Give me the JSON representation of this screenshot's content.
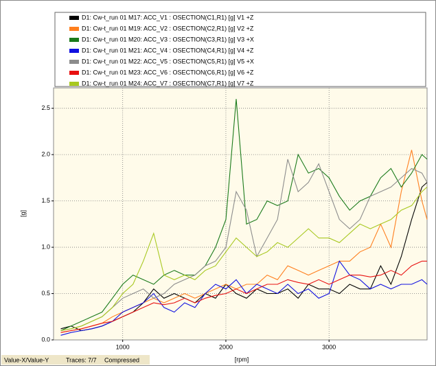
{
  "chart_data": {
    "type": "line",
    "xlabel": "[rpm]",
    "ylabel": "[g]",
    "status": [
      "Value-X/Value-Y",
      "Traces: 7/7",
      "Compressed"
    ],
    "xlim": [
      330,
      3950
    ],
    "ylim": [
      0,
      2.72
    ],
    "xticks": [
      1000,
      2000,
      3000
    ],
    "yticks": [
      {
        "value": 0,
        "label": "0.0"
      },
      0.5,
      {
        "value": 1,
        "label": "1.0"
      },
      1.5,
      {
        "value": 2,
        "label": "2.0"
      },
      2.5
    ],
    "grid": true,
    "legend": "top",
    "x": [
      400,
      500,
      600,
      700,
      800,
      900,
      1000,
      1100,
      1200,
      1300,
      1400,
      1500,
      1600,
      1700,
      1800,
      1900,
      2000,
      2100,
      2200,
      2300,
      2400,
      2500,
      2600,
      2700,
      2800,
      2900,
      3000,
      3100,
      3200,
      3300,
      3400,
      3500,
      3600,
      3700,
      3800,
      3900,
      3950
    ],
    "series": [
      {
        "name": "D1: Cw-t_run 01  M17: ACC_V1 : OSECTION(C1,R1) [g]  V1  +Z",
        "color": "#000000",
        "values": [
          0.12,
          0.15,
          0.1,
          0.12,
          0.15,
          0.2,
          0.25,
          0.3,
          0.4,
          0.55,
          0.45,
          0.5,
          0.45,
          0.4,
          0.5,
          0.45,
          0.6,
          0.5,
          0.45,
          0.55,
          0.5,
          0.5,
          0.55,
          0.45,
          0.6,
          0.55,
          0.55,
          0.5,
          0.6,
          0.55,
          0.55,
          0.8,
          0.6,
          0.9,
          1.3,
          1.65,
          1.7
        ]
      },
      {
        "name": "D1: Cw-t_run 01  M19: ACC_V2 : OSECTION(C2,R1) [g]  V2  +Z",
        "color": "#ff7f1e",
        "values": [
          0.08,
          0.1,
          0.12,
          0.15,
          0.18,
          0.25,
          0.3,
          0.35,
          0.4,
          0.45,
          0.4,
          0.45,
          0.5,
          0.45,
          0.5,
          0.55,
          0.6,
          0.55,
          0.6,
          0.6,
          0.7,
          0.65,
          0.8,
          0.75,
          0.7,
          0.75,
          0.8,
          0.85,
          0.85,
          0.95,
          1.0,
          1.25,
          1.0,
          1.6,
          2.05,
          1.5,
          1.3
        ]
      },
      {
        "name": "D1: Cw-t_run 01  M20: ACC_V3 : OSECTION(C3,R1) [g]  V3  +X",
        "color": "#1a7a1a",
        "values": [
          0.1,
          0.15,
          0.2,
          0.25,
          0.3,
          0.45,
          0.6,
          0.7,
          0.65,
          0.6,
          0.7,
          0.75,
          0.7,
          0.7,
          0.8,
          1.0,
          1.3,
          2.6,
          1.25,
          1.3,
          1.5,
          1.45,
          1.5,
          2.0,
          1.8,
          1.85,
          1.75,
          1.55,
          1.4,
          1.5,
          1.55,
          1.75,
          1.85,
          1.65,
          1.8,
          2.0,
          1.95
        ]
      },
      {
        "name": "D1: Cw-t_run 01  M21: ACC_V4 : OSECTION(C4,R1) [g]  V4  +Z",
        "color": "#1010e0",
        "values": [
          0.05,
          0.08,
          0.1,
          0.12,
          0.15,
          0.2,
          0.3,
          0.35,
          0.4,
          0.5,
          0.35,
          0.3,
          0.4,
          0.35,
          0.5,
          0.6,
          0.55,
          0.65,
          0.5,
          0.6,
          0.55,
          0.5,
          0.6,
          0.5,
          0.55,
          0.45,
          0.5,
          0.85,
          0.7,
          0.65,
          0.55,
          0.6,
          0.55,
          0.6,
          0.6,
          0.65,
          0.6
        ]
      },
      {
        "name": "D1: Cw-t_run 01  M22: ACC_V5 : OSECTION(C5,R1) [g]  V5  +X",
        "color": "#8c8c8c",
        "values": [
          0.1,
          0.12,
          0.15,
          0.2,
          0.25,
          0.35,
          0.45,
          0.5,
          0.55,
          0.45,
          0.5,
          0.6,
          0.65,
          0.7,
          0.8,
          0.85,
          1.0,
          1.6,
          1.4,
          0.9,
          1.1,
          1.3,
          1.95,
          1.6,
          1.7,
          1.9,
          1.6,
          1.3,
          1.2,
          1.3,
          1.55,
          1.6,
          1.65,
          1.75,
          1.85,
          1.8,
          1.7
        ]
      },
      {
        "name": "D1: Cw-t_run 01  M23: ACC_V6 : OSECTION(C6,R1) [g]  V6  +Z",
        "color": "#e81010",
        "values": [
          0.08,
          0.1,
          0.12,
          0.15,
          0.18,
          0.2,
          0.25,
          0.3,
          0.35,
          0.4,
          0.38,
          0.4,
          0.45,
          0.4,
          0.45,
          0.48,
          0.5,
          0.55,
          0.5,
          0.55,
          0.6,
          0.6,
          0.65,
          0.62,
          0.6,
          0.65,
          0.6,
          0.65,
          0.7,
          0.7,
          0.68,
          0.7,
          0.75,
          0.7,
          0.8,
          0.85,
          0.85
        ]
      },
      {
        "name": "D1: Cw-t_run 01  M24: ACC_V7 : OSECTION(C7,R1) [g]  V7  +Z",
        "color": "#a8c820",
        "values": [
          0.1,
          0.12,
          0.15,
          0.2,
          0.25,
          0.35,
          0.5,
          0.6,
          0.85,
          1.15,
          0.7,
          0.65,
          0.7,
          0.65,
          0.75,
          0.8,
          0.95,
          1.1,
          1.0,
          0.9,
          0.95,
          1.05,
          1.0,
          1.1,
          1.2,
          1.1,
          1.1,
          1.05,
          1.15,
          1.25,
          1.2,
          1.25,
          1.3,
          1.4,
          1.45,
          1.6,
          1.65
        ]
      }
    ]
  }
}
